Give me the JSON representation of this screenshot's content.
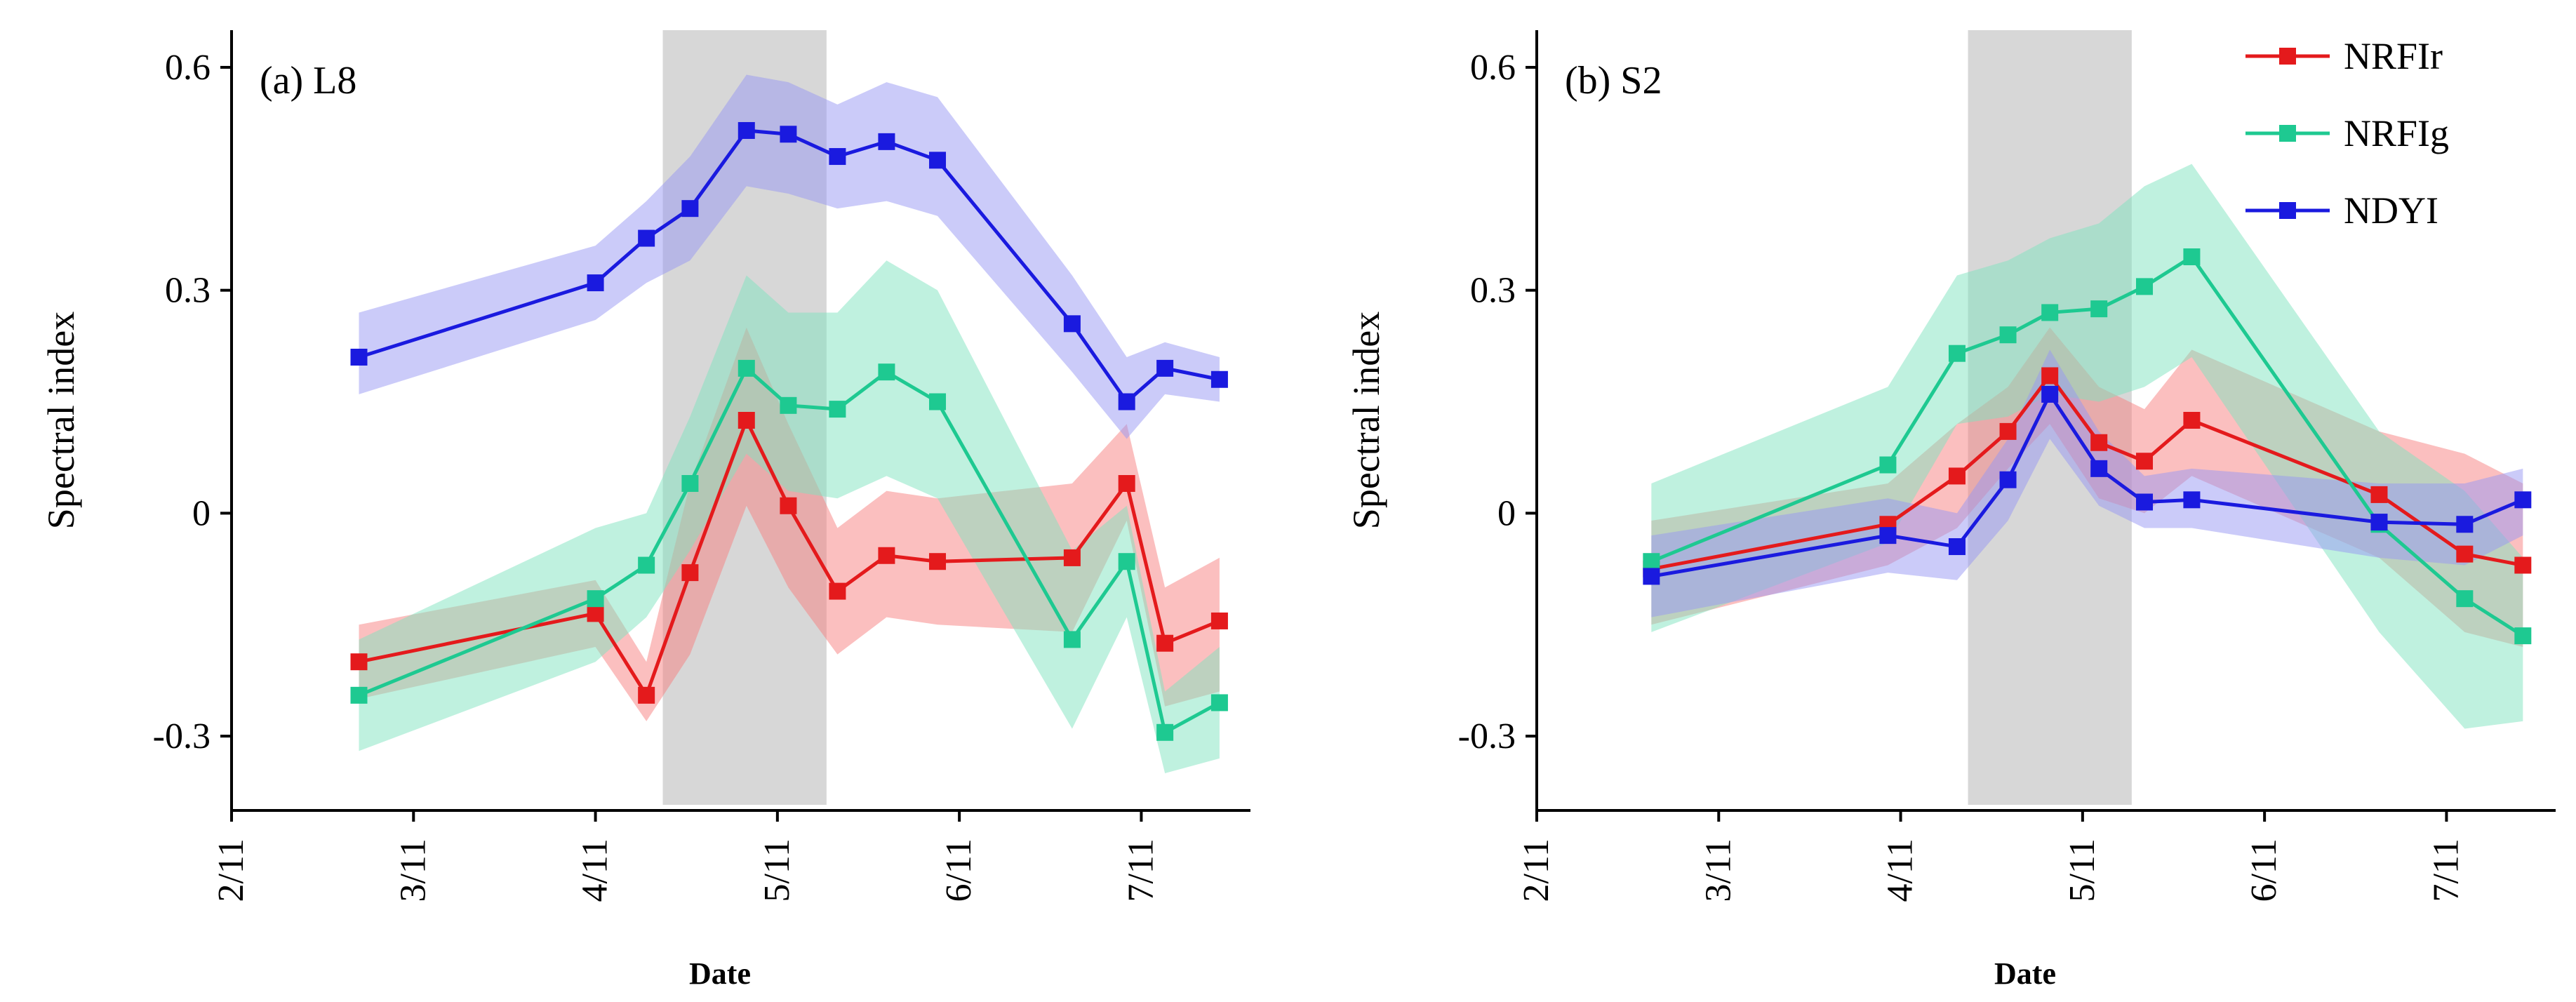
{
  "chart_data": [
    {
      "type": "line",
      "panel_label": "(a) L8",
      "xlabel": "Date",
      "ylabel": "Spectral index",
      "x_ticks": [
        "2/11",
        "3/11",
        "4/11",
        "5/11",
        "6/11",
        "7/11"
      ],
      "y_ticks": [
        "-0.3",
        "0",
        "0.3",
        "0.6"
      ],
      "x_range_months": [
        2,
        7.6
      ],
      "ylim": [
        -0.4,
        0.65
      ],
      "shaded_period": [
        4.37,
        5.27
      ],
      "series": [
        {
          "name": "NRFIr",
          "color": "#e41a1c",
          "band_color": "#f77f7f",
          "x": [
            2.7,
            4.0,
            4.28,
            4.52,
            4.83,
            5.06,
            5.33,
            5.6,
            5.88,
            6.62,
            6.92,
            7.13,
            7.43
          ],
          "y": [
            -0.2,
            -0.135,
            -0.245,
            -0.08,
            0.125,
            0.01,
            -0.105,
            -0.057,
            -0.065,
            -0.06,
            0.04,
            -0.175,
            -0.145
          ],
          "lower": [
            -0.25,
            -0.18,
            -0.28,
            -0.19,
            0.01,
            -0.1,
            -0.19,
            -0.14,
            -0.15,
            -0.16,
            -0.01,
            -0.26,
            -0.24
          ],
          "upper": [
            -0.15,
            -0.09,
            -0.2,
            0.04,
            0.25,
            0.12,
            -0.02,
            0.03,
            0.02,
            0.04,
            0.12,
            -0.1,
            -0.06
          ]
        },
        {
          "name": "NRFIg",
          "color": "#1ec991",
          "band_color": "#7fe4c0",
          "x": [
            2.7,
            4.0,
            4.28,
            4.52,
            4.83,
            5.06,
            5.33,
            5.6,
            5.88,
            6.62,
            6.92,
            7.13,
            7.43
          ],
          "y": [
            -0.245,
            -0.115,
            -0.07,
            0.04,
            0.195,
            0.145,
            0.14,
            0.19,
            0.15,
            -0.17,
            -0.065,
            -0.295,
            -0.255
          ],
          "lower": [
            -0.32,
            -0.2,
            -0.14,
            -0.05,
            0.08,
            0.03,
            0.02,
            0.05,
            0.02,
            -0.29,
            -0.14,
            -0.35,
            -0.33
          ],
          "upper": [
            -0.17,
            -0.02,
            0.0,
            0.13,
            0.32,
            0.27,
            0.27,
            0.34,
            0.3,
            -0.05,
            0.01,
            -0.24,
            -0.18
          ]
        },
        {
          "name": "NDYI",
          "color": "#1a1adf",
          "band_color": "#9797f4",
          "x": [
            2.7,
            4.0,
            4.28,
            4.52,
            4.83,
            5.06,
            5.33,
            5.6,
            5.88,
            6.62,
            6.92,
            7.13,
            7.43
          ],
          "y": [
            0.21,
            0.31,
            0.37,
            0.41,
            0.515,
            0.51,
            0.48,
            0.5,
            0.475,
            0.255,
            0.15,
            0.195,
            0.18
          ],
          "lower": [
            0.16,
            0.26,
            0.31,
            0.34,
            0.44,
            0.43,
            0.41,
            0.42,
            0.4,
            0.19,
            0.1,
            0.16,
            0.15
          ],
          "upper": [
            0.27,
            0.36,
            0.42,
            0.48,
            0.59,
            0.58,
            0.55,
            0.58,
            0.56,
            0.32,
            0.21,
            0.23,
            0.21
          ]
        }
      ]
    },
    {
      "type": "line",
      "panel_label": "(b) S2",
      "xlabel": "Date",
      "ylabel": "Spectral index",
      "x_ticks": [
        "2/11",
        "3/11",
        "4/11",
        "5/11",
        "6/11",
        "7/11"
      ],
      "y_ticks": [
        "-0.3",
        "0",
        "0.3",
        "0.6"
      ],
      "x_range_months": [
        2,
        7.6
      ],
      "ylim": [
        -0.4,
        0.65
      ],
      "shaded_period": [
        4.37,
        5.27
      ],
      "legend_position": "top-right",
      "series": [
        {
          "name": "NRFIr",
          "color": "#e41a1c",
          "band_color": "#f77f7f",
          "x": [
            2.63,
            3.93,
            4.31,
            4.59,
            4.82,
            5.09,
            5.34,
            5.6,
            6.63,
            7.1,
            7.42
          ],
          "y": [
            -0.075,
            -0.015,
            0.05,
            0.11,
            0.185,
            0.095,
            0.07,
            0.125,
            0.025,
            -0.055,
            -0.07
          ],
          "lower": [
            -0.15,
            -0.07,
            -0.02,
            0.06,
            0.12,
            0.02,
            0.0,
            0.05,
            -0.06,
            -0.16,
            -0.18
          ],
          "upper": [
            -0.01,
            0.04,
            0.12,
            0.17,
            0.25,
            0.17,
            0.14,
            0.22,
            0.11,
            0.08,
            0.04
          ]
        },
        {
          "name": "NRFIg",
          "color": "#1ec991",
          "band_color": "#7fe4c0",
          "x": [
            2.63,
            3.93,
            4.31,
            4.59,
            4.82,
            5.09,
            5.34,
            5.6,
            6.63,
            7.1,
            7.42
          ],
          "y": [
            -0.065,
            0.065,
            0.215,
            0.24,
            0.27,
            0.275,
            0.305,
            0.345,
            -0.015,
            -0.115,
            -0.165
          ],
          "lower": [
            -0.16,
            -0.04,
            0.12,
            0.13,
            0.16,
            0.15,
            0.17,
            0.21,
            -0.16,
            -0.29,
            -0.28
          ],
          "upper": [
            0.04,
            0.17,
            0.32,
            0.34,
            0.37,
            0.39,
            0.44,
            0.47,
            0.11,
            0.03,
            -0.06
          ]
        },
        {
          "name": "NDYI",
          "color": "#1a1adf",
          "band_color": "#9797f4",
          "x": [
            2.63,
            3.93,
            4.31,
            4.59,
            4.82,
            5.09,
            5.34,
            5.6,
            6.63,
            7.1,
            7.42
          ],
          "y": [
            -0.085,
            -0.03,
            -0.045,
            0.045,
            0.16,
            0.06,
            0.015,
            0.018,
            -0.012,
            -0.015,
            0.018
          ],
          "lower": [
            -0.14,
            -0.08,
            -0.09,
            -0.01,
            0.1,
            0.01,
            -0.02,
            -0.02,
            -0.06,
            -0.07,
            -0.03
          ],
          "upper": [
            -0.03,
            0.02,
            0.0,
            0.1,
            0.22,
            0.11,
            0.05,
            0.06,
            0.04,
            0.04,
            0.06
          ]
        }
      ]
    }
  ]
}
